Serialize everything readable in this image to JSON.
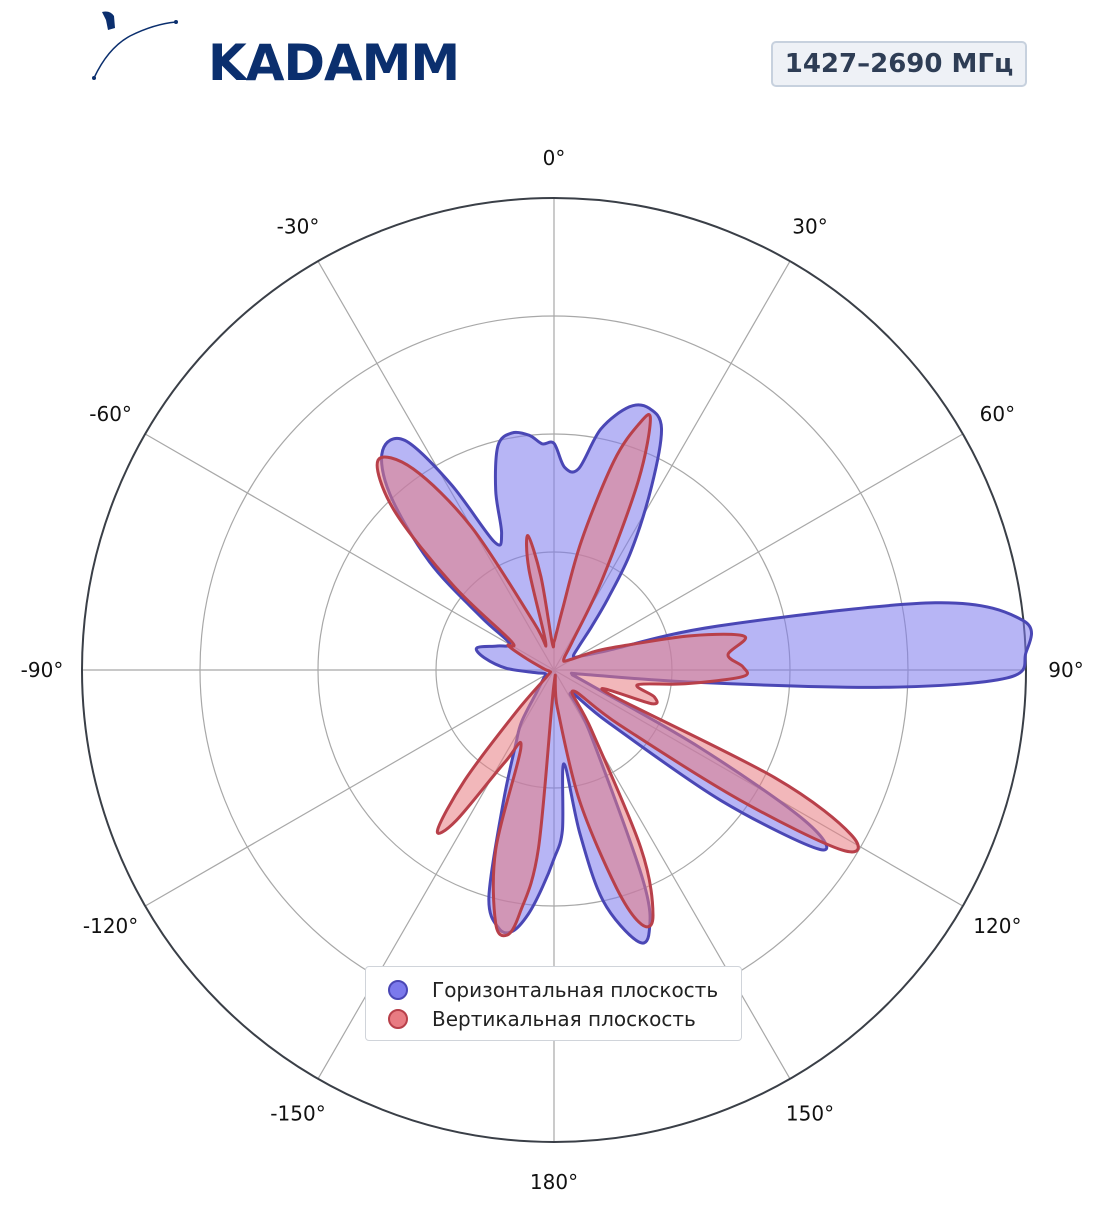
{
  "brand": {
    "logo_text": "KADAMM",
    "logo_color": "#0b2f6e"
  },
  "badge": {
    "text": "1427–2690 МГц"
  },
  "chart_data": {
    "type": "polar-area",
    "theta_labels": [
      "0°",
      "30°",
      "60°",
      "90°",
      "120°",
      "150°",
      "180°",
      "-150°",
      "-120°",
      "-90°",
      "-60°",
      "-30°"
    ],
    "theta_ticks": [
      0,
      30,
      60,
      90,
      120,
      150,
      180,
      -150,
      -120,
      -90,
      -60,
      -30
    ],
    "radial_rings": [
      0.25,
      0.5,
      0.75,
      1.0
    ],
    "r_max": 1.0,
    "grid": true,
    "legend_placement": "bottom-center",
    "series": [
      {
        "name": "Горизонтальная плоскость",
        "color": "#4a47b5",
        "fill": "#7b79ec",
        "points": [
          [
            0,
            0.48
          ],
          [
            3,
            0.43
          ],
          [
            7,
            0.43
          ],
          [
            11,
            0.52
          ],
          [
            16,
            0.58
          ],
          [
            20,
            0.59
          ],
          [
            24,
            0.56
          ],
          [
            28,
            0.44
          ],
          [
            33,
            0.3
          ],
          [
            37,
            0.19
          ],
          [
            41,
            0.12
          ],
          [
            47,
            0.07
          ],
          [
            56,
            0.05
          ],
          [
            64,
            0.07
          ],
          [
            70,
            0.12
          ],
          [
            75,
            0.36
          ],
          [
            80,
            0.82
          ],
          [
            84,
            1.0
          ],
          [
            88,
            1.0
          ],
          [
            91,
            0.96
          ],
          [
            93,
            0.7
          ],
          [
            95,
            0.3
          ],
          [
            98,
            0.07
          ],
          [
            103,
            0.04
          ],
          [
            112,
            0.08
          ],
          [
            118,
            0.35
          ],
          [
            121,
            0.62
          ],
          [
            124,
            0.68
          ],
          [
            128,
            0.45
          ],
          [
            134,
            0.16
          ],
          [
            144,
            0.06
          ],
          [
            150,
            0.15
          ],
          [
            157,
            0.48
          ],
          [
            160,
            0.59
          ],
          [
            163,
            0.6
          ],
          [
            168,
            0.5
          ],
          [
            171,
            0.35
          ],
          [
            174,
            0.2
          ],
          [
            177,
            0.34
          ],
          [
            180,
            0.4
          ],
          [
            183,
            0.46
          ],
          [
            186,
            0.52
          ],
          [
            189,
            0.56
          ],
          [
            192,
            0.56
          ],
          [
            196,
            0.5
          ],
          [
            201,
            0.3
          ],
          [
            207,
            0.18
          ],
          [
            212,
            0.13
          ],
          [
            218,
            0.06
          ],
          [
            230,
            0.03
          ],
          [
            246,
            0.02
          ],
          [
            262,
            0.04
          ],
          [
            272,
            0.1
          ],
          [
            280,
            0.15
          ],
          [
            286,
            0.17
          ],
          [
            293,
            0.13
          ],
          [
            301,
            0.11
          ],
          [
            306,
            0.19
          ],
          [
            311,
            0.35
          ],
          [
            317,
            0.51
          ],
          [
            322,
            0.59
          ],
          [
            327,
            0.58
          ],
          [
            331,
            0.45
          ],
          [
            335,
            0.3
          ],
          [
            339,
            0.31
          ],
          [
            342,
            0.4
          ],
          [
            346,
            0.49
          ],
          [
            350,
            0.51
          ],
          [
            354,
            0.5
          ],
          [
            357,
            0.48
          ]
        ]
      },
      {
        "name": "Вертикальная плоскость",
        "color": "#b8404a",
        "fill": "#e87b82",
        "points": [
          [
            0,
            0.06
          ],
          [
            4,
            0.08
          ],
          [
            8,
            0.13
          ],
          [
            12,
            0.28
          ],
          [
            16,
            0.46
          ],
          [
            19,
            0.55
          ],
          [
            21,
            0.57
          ],
          [
            24,
            0.44
          ],
          [
            28,
            0.22
          ],
          [
            33,
            0.07
          ],
          [
            43,
            0.03
          ],
          [
            57,
            0.04
          ],
          [
            66,
            0.1
          ],
          [
            71,
            0.16
          ],
          [
            76,
            0.3
          ],
          [
            80,
            0.41
          ],
          [
            85,
            0.37
          ],
          [
            89,
            0.4
          ],
          [
            92,
            0.4
          ],
          [
            96,
            0.28
          ],
          [
            100,
            0.18
          ],
          [
            105,
            0.22
          ],
          [
            109,
            0.22
          ],
          [
            113,
            0.12
          ],
          [
            116,
            0.52
          ],
          [
            119,
            0.72
          ],
          [
            122,
            0.72
          ],
          [
            125,
            0.48
          ],
          [
            130,
            0.18
          ],
          [
            138,
            0.06
          ],
          [
            148,
            0.15
          ],
          [
            154,
            0.42
          ],
          [
            158,
            0.56
          ],
          [
            161,
            0.57
          ],
          [
            164,
            0.48
          ],
          [
            169,
            0.28
          ],
          [
            175,
            0.08
          ],
          [
            180,
            0.03
          ],
          [
            185,
            0.38
          ],
          [
            188,
            0.52
          ],
          [
            190,
            0.57
          ],
          [
            193,
            0.55
          ],
          [
            198,
            0.4
          ],
          [
            203,
            0.18
          ],
          [
            208,
            0.22
          ],
          [
            213,
            0.38
          ],
          [
            216,
            0.42
          ],
          [
            219,
            0.3
          ],
          [
            222,
            0.12
          ],
          [
            228,
            0.02
          ],
          [
            250,
            0.01
          ],
          [
            275,
            0.02
          ],
          [
            292,
            0.06
          ],
          [
            298,
            0.11
          ],
          [
            304,
            0.11
          ],
          [
            310,
            0.28
          ],
          [
            315,
            0.48
          ],
          [
            320,
            0.58
          ],
          [
            325,
            0.52
          ],
          [
            330,
            0.35
          ],
          [
            337,
            0.11
          ],
          [
            343,
            0.06
          ],
          [
            346,
            0.22
          ],
          [
            349,
            0.29
          ],
          [
            352,
            0.2
          ],
          [
            356,
            0.06
          ]
        ]
      }
    ]
  }
}
